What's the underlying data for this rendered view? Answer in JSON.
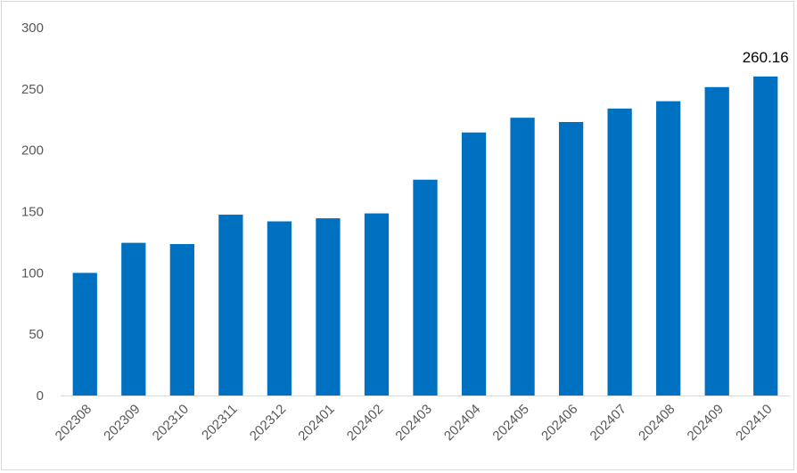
{
  "chart_data": {
    "type": "bar",
    "categories": [
      "202308",
      "202309",
      "202310",
      "202311",
      "202312",
      "202401",
      "202402",
      "202403",
      "202404",
      "202405",
      "202406",
      "202407",
      "202408",
      "202409",
      "202410"
    ],
    "values": [
      100,
      124.5,
      123.5,
      147.5,
      142,
      144.5,
      148.5,
      176,
      214.5,
      226.5,
      223,
      234,
      240,
      251.5,
      260.16
    ],
    "data_labels": [
      {
        "index": 14,
        "text": "260.16"
      }
    ],
    "title": "",
    "xlabel": "",
    "ylabel": "",
    "ylim": [
      0,
      300
    ],
    "yticks": [
      "0",
      "50",
      "100",
      "150",
      "200",
      "250",
      "300"
    ],
    "grid": false,
    "legend": "none",
    "bar_color": "#0070C0",
    "axis_color": "#d9d9d9"
  }
}
